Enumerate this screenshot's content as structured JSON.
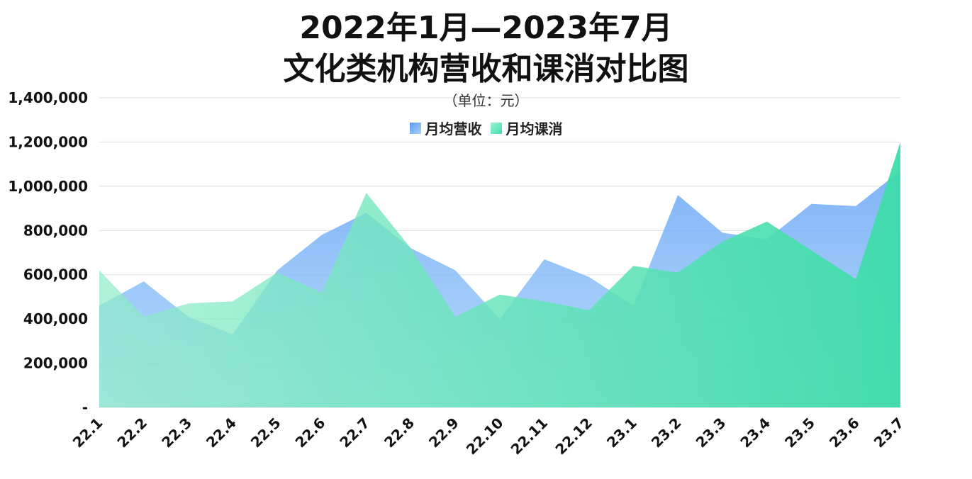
{
  "title_line1": "2022年1月—2023年7月",
  "title_line2": "文化类机构营收和课消对比图",
  "subtitle": "（单位：元）",
  "colors": {
    "revenue_top": "#6aa6f5",
    "revenue_bottom": "#8ec4f8",
    "consumption_top": "#7be7c2",
    "consumption_bottom": "#40dfae",
    "grid": "#dddddd"
  },
  "chart_data": {
    "type": "area",
    "categories": [
      "22.1",
      "22.2",
      "22.3",
      "22.4",
      "22.5",
      "22.6",
      "22.7",
      "22.8",
      "22.9",
      "22.10",
      "22.11",
      "22.12",
      "23.1",
      "23.2",
      "23.3",
      "23.4",
      "23.5",
      "23.6",
      "23.7"
    ],
    "series": [
      {
        "name": "月均营收",
        "values": [
          460000,
          570000,
          410000,
          330000,
          620000,
          780000,
          880000,
          720000,
          620000,
          400000,
          670000,
          590000,
          460000,
          960000,
          790000,
          760000,
          920000,
          910000,
          1070000
        ]
      },
      {
        "name": "月均课消",
        "values": [
          620000,
          410000,
          470000,
          480000,
          610000,
          520000,
          970000,
          720000,
          410000,
          510000,
          480000,
          440000,
          640000,
          610000,
          750000,
          840000,
          710000,
          580000,
          1200000
        ]
      }
    ],
    "yticks": [
      0,
      200000,
      400000,
      600000,
      800000,
      1000000,
      1200000,
      1400000
    ],
    "ytick_labels": [
      "-",
      "200,000",
      "400,000",
      "600,000",
      "800,000",
      "1,000,000",
      "1,200,000",
      "1,400,000"
    ],
    "ylim": [
      0,
      1400000
    ],
    "grid": true,
    "legend_position": "top-center"
  }
}
